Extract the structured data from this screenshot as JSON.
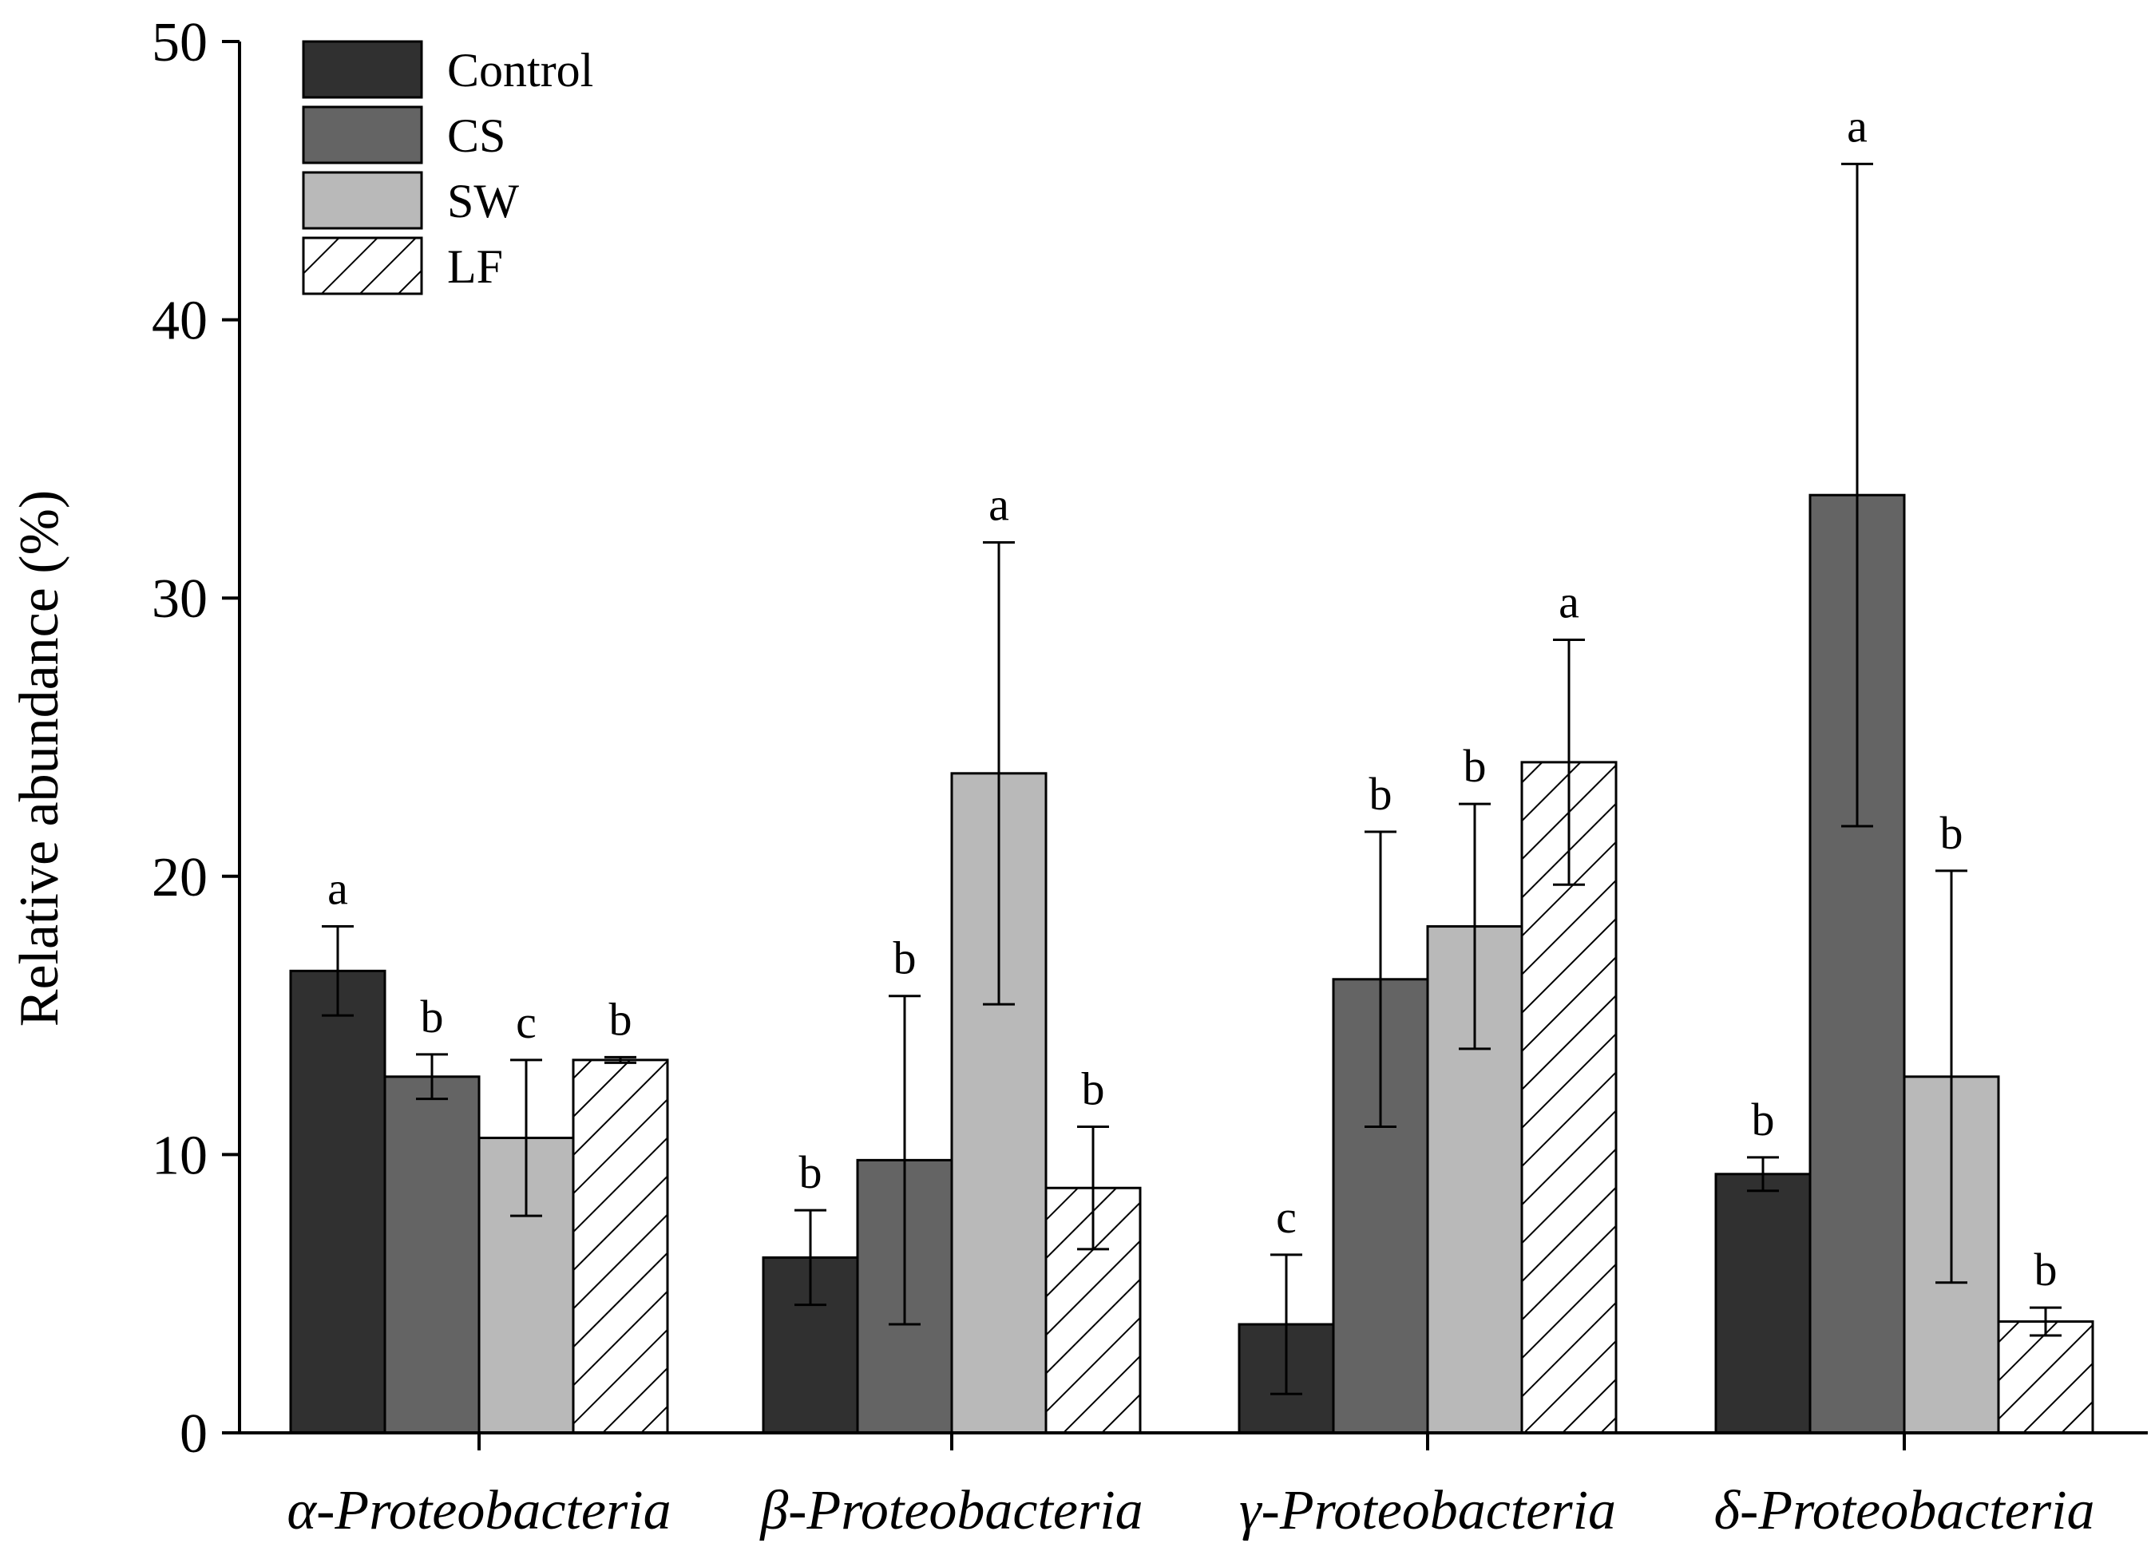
{
  "chart_data": {
    "type": "bar",
    "title": "",
    "xlabel": "",
    "ylabel": "Relative abundance (%)",
    "ylim": [
      0,
      50
    ],
    "yticks": [
      "0",
      "10",
      "20",
      "30",
      "40",
      "50"
    ],
    "categories": [
      "α-Proteobacteria",
      "β-Proteobacteria",
      "γ-Proteobacteria",
      "δ-Proteobacteria"
    ],
    "legend_position": "top-left",
    "grid": false,
    "series": [
      {
        "name": "Control",
        "color": "#303030",
        "pattern": "solid",
        "values": [
          16.6,
          6.3,
          3.9,
          9.3
        ],
        "errors": [
          1.6,
          1.7,
          2.5,
          0.6
        ],
        "letters": [
          "a",
          "b",
          "c",
          "b"
        ]
      },
      {
        "name": "CS",
        "color": "#646464",
        "pattern": "solid",
        "values": [
          12.8,
          9.8,
          16.3,
          33.7
        ],
        "errors": [
          0.8,
          5.9,
          5.3,
          11.9
        ],
        "letters": [
          "b",
          "b",
          "b",
          "a"
        ]
      },
      {
        "name": "SW",
        "color": "#b9b9b9",
        "pattern": "solid",
        "values": [
          10.6,
          23.7,
          18.2,
          12.8
        ],
        "errors": [
          2.8,
          8.3,
          4.4,
          7.4
        ],
        "letters": [
          "c",
          "a",
          "b",
          "b"
        ]
      },
      {
        "name": "LF",
        "color": "#ffffff",
        "pattern": "hatch",
        "values": [
          13.4,
          8.8,
          24.1,
          4.0
        ],
        "errors": [
          0.1,
          2.2,
          4.4,
          0.5
        ],
        "letters": [
          "b",
          "b",
          "a",
          "b"
        ]
      }
    ]
  }
}
